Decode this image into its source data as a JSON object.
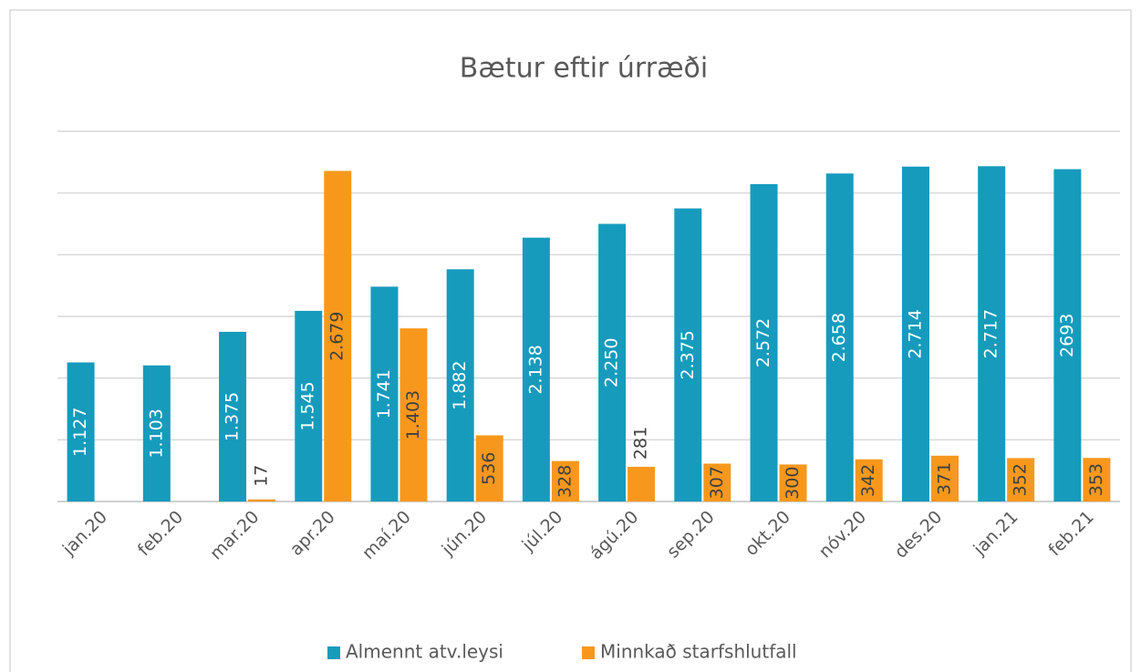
{
  "chart_data": {
    "type": "bar",
    "title": "Bætur eftir úrræði",
    "categories": [
      "jan.20",
      "feb.20",
      "mar.20",
      "apr.20",
      "maí.20",
      "jún.20",
      "júl.20",
      "ágú.20",
      "sep.20",
      "okt.20",
      "nóv.20",
      "des.20",
      "jan.21",
      "feb.21"
    ],
    "series": [
      {
        "name": "Almennt atv.leysi",
        "color": "#169bbd",
        "values": [
          1127,
          1103,
          1375,
          1545,
          1741,
          1882,
          2138,
          2250,
          2375,
          2572,
          2658,
          2714,
          2717,
          2693
        ],
        "value_labels": [
          "1.127",
          "1.103",
          "1.375",
          "1.545",
          "1.741",
          "1.882",
          "2.138",
          "2.250",
          "2.375",
          "2.572",
          "2.658",
          "2.714",
          "2.717",
          "2693"
        ]
      },
      {
        "name": "Minnkað starfshlutfall",
        "color": "#f7981d",
        "values": [
          null,
          null,
          17,
          2679,
          1403,
          536,
          328,
          281,
          307,
          300,
          342,
          371,
          352,
          353
        ],
        "value_labels": [
          null,
          null,
          "17",
          "2.679",
          "1.403",
          "536",
          "328",
          "281",
          "307",
          "300",
          "342",
          "371",
          "352",
          "353"
        ]
      }
    ],
    "ylim": [
      0,
      3000
    ],
    "yticks": [
      0,
      500,
      1000,
      1500,
      2000,
      2500,
      3000
    ],
    "grid": true,
    "legend": "bottom"
  }
}
